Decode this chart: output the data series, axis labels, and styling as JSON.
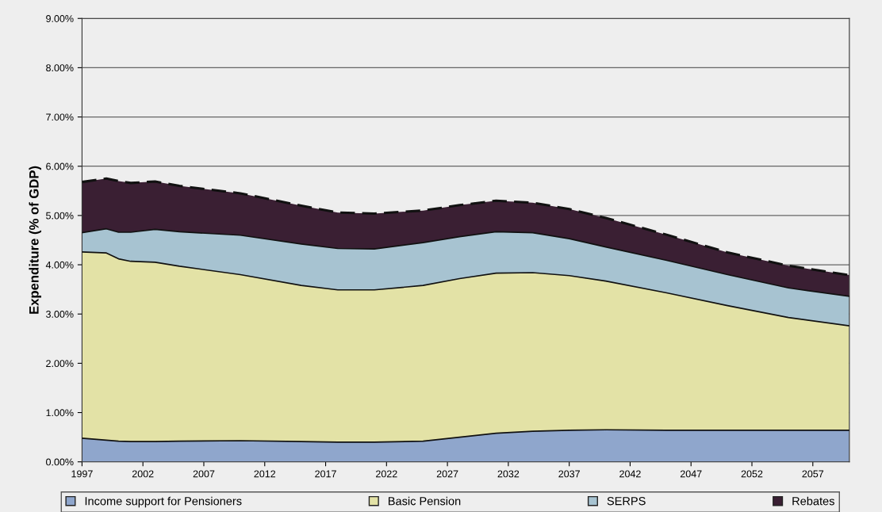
{
  "chart_data": {
    "type": "area",
    "stacked": true,
    "ylabel": "Expenditure (% of GDP)",
    "x": [
      1997,
      1999,
      2000,
      2001,
      2003,
      2005,
      2010,
      2015,
      2018,
      2021,
      2025,
      2028,
      2031,
      2034,
      2037,
      2040,
      2045,
      2050,
      2055,
      2060
    ],
    "series": [
      {
        "name": "Income support for Pensioners",
        "color": "#8fa6cc",
        "line_style": "solid",
        "values": [
          0.48,
          0.44,
          0.42,
          0.41,
          0.41,
          0.42,
          0.43,
          0.41,
          0.4,
          0.4,
          0.42,
          0.5,
          0.58,
          0.62,
          0.64,
          0.65,
          0.64,
          0.64,
          0.64,
          0.64
        ]
      },
      {
        "name": "Basic Pension",
        "color": "#e3e2a6",
        "line_style": "solid",
        "values": [
          3.78,
          3.8,
          3.7,
          3.66,
          3.64,
          3.55,
          3.37,
          3.17,
          3.09,
          3.09,
          3.16,
          3.22,
          3.25,
          3.22,
          3.14,
          3.02,
          2.79,
          2.53,
          2.29,
          2.12
        ]
      },
      {
        "name": "SERPS",
        "color": "#a7c3d1",
        "line_style": "solid",
        "values": [
          0.39,
          0.49,
          0.54,
          0.59,
          0.67,
          0.7,
          0.8,
          0.84,
          0.84,
          0.83,
          0.87,
          0.85,
          0.84,
          0.81,
          0.75,
          0.69,
          0.66,
          0.63,
          0.6,
          0.6
        ]
      },
      {
        "name": "Rebates",
        "color": "#3a1f33",
        "line_style": "dashed",
        "values": [
          1.03,
          1.02,
          1.04,
          1.0,
          0.97,
          0.93,
          0.85,
          0.78,
          0.73,
          0.72,
          0.65,
          0.64,
          0.63,
          0.61,
          0.6,
          0.59,
          0.52,
          0.45,
          0.45,
          0.43
        ]
      }
    ],
    "xlim": [
      1997,
      2060
    ],
    "xticks": [
      1997,
      2002,
      2007,
      2012,
      2017,
      2022,
      2027,
      2032,
      2037,
      2042,
      2047,
      2052,
      2057
    ],
    "ylim": [
      0,
      9
    ],
    "yticks": [
      {
        "value": 0,
        "label": "0.00%"
      },
      {
        "value": 1,
        "label": "1.00%"
      },
      {
        "value": 2,
        "label": "2.00%"
      },
      {
        "value": 3,
        "label": "3.00%"
      },
      {
        "value": 4,
        "label": "4.00%"
      },
      {
        "value": 5,
        "label": "5.00%"
      },
      {
        "value": 6,
        "label": "6.00%"
      },
      {
        "value": 7,
        "label": "7.00%"
      },
      {
        "value": 8,
        "label": "8.00%"
      },
      {
        "value": 9,
        "label": "9.00%"
      }
    ],
    "grid": "y",
    "legend": "bottom"
  }
}
